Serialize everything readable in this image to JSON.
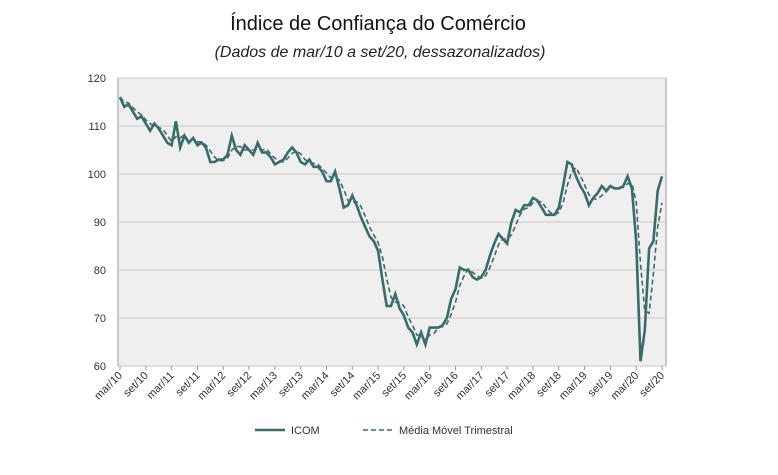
{
  "chart_data": {
    "type": "line",
    "title": "Índice de Confiança do Comércio",
    "subtitle": "(Dados de mar/10 a set/20, dessazonalizados)",
    "categories": [
      "mar/10",
      null,
      null,
      null,
      null,
      null,
      "set/10",
      null,
      null,
      null,
      null,
      null,
      "mar/11",
      null,
      null,
      null,
      null,
      null,
      "set/11",
      null,
      null,
      null,
      null,
      null,
      "mar/12",
      null,
      null,
      null,
      null,
      null,
      "set/12",
      null,
      null,
      null,
      null,
      null,
      "mar/13",
      null,
      null,
      null,
      null,
      null,
      "set/13",
      null,
      null,
      null,
      null,
      null,
      "mar/14",
      null,
      null,
      null,
      null,
      null,
      "set/14",
      null,
      null,
      null,
      null,
      null,
      "mar/15",
      null,
      null,
      null,
      null,
      null,
      "set/15",
      null,
      null,
      null,
      null,
      null,
      "mar/16",
      null,
      null,
      null,
      null,
      null,
      "set/16",
      null,
      null,
      null,
      null,
      null,
      "mar/17",
      null,
      null,
      null,
      null,
      null,
      "set/17",
      null,
      null,
      null,
      null,
      null,
      "mar/18",
      null,
      null,
      null,
      null,
      null,
      "set/18",
      null,
      null,
      null,
      null,
      null,
      "mar/19",
      null,
      null,
      null,
      null,
      null,
      "set/19",
      null,
      null,
      null,
      null,
      null,
      "mar/20",
      null,
      null,
      null,
      null,
      null,
      "set/20"
    ],
    "series": [
      {
        "name": "ICOM",
        "color": "#3a6b68",
        "dashed": false,
        "values": [
          116,
          114,
          114.5,
          113,
          111.5,
          112,
          110.5,
          109,
          110.5,
          109.5,
          108,
          106.5,
          106,
          111,
          105.5,
          108,
          106.5,
          107.5,
          106,
          106.5,
          105.5,
          102.5,
          102.5,
          103,
          103,
          104,
          108,
          105,
          104,
          106,
          105,
          104,
          106.5,
          104.5,
          104.5,
          103.5,
          102,
          102.5,
          103,
          104.5,
          105.5,
          104.5,
          102.5,
          102,
          103,
          101.5,
          101.5,
          100.5,
          98.5,
          98.5,
          100.5,
          97,
          93,
          93.5,
          95.5,
          93.5,
          91,
          89,
          87,
          86,
          84,
          78,
          72.5,
          72.5,
          75,
          72,
          70.5,
          68,
          67,
          64.5,
          67,
          64.5,
          68,
          68,
          68,
          68.5,
          70,
          74,
          76,
          80.5,
          80,
          80,
          78.5,
          78,
          78.5,
          80,
          83,
          85.5,
          87.5,
          86.5,
          85.5,
          90,
          92.5,
          92,
          93.5,
          93.5,
          95,
          94.5,
          93,
          91.5,
          91.5,
          91.5,
          93,
          97.5,
          102.5,
          102,
          99.5,
          97.5,
          96,
          93.5,
          95,
          96,
          97.5,
          96.5,
          97.5,
          97,
          97,
          97.5,
          99.5,
          97,
          86,
          61,
          67.5,
          84.5,
          86,
          96.5,
          99.5
        ]
      },
      {
        "name": "Média Móvel Trimestral",
        "color": "#3a6b68",
        "dashed": true,
        "values": [
          116,
          115,
          114.8,
          113.8,
          113,
          112.3,
          111.3,
          110.5,
          110,
          109.7,
          109.3,
          108,
          106.8,
          107.8,
          107.5,
          108.2,
          106.7,
          107.3,
          106.7,
          106.7,
          106,
          104.8,
          103.5,
          102.7,
          102.8,
          103.3,
          105,
          105.7,
          105.7,
          105,
          105,
          105,
          105.2,
          105,
          105.2,
          104.2,
          103.3,
          102.7,
          102.5,
          103.3,
          104.3,
          104.8,
          104.2,
          103,
          102.5,
          102.2,
          102,
          101.2,
          100.2,
          99.2,
          99.2,
          98.7,
          96.8,
          94.5,
          94,
          94.2,
          93.3,
          91.2,
          89,
          87.3,
          85.7,
          82.7,
          78.2,
          74.3,
          73.3,
          73.2,
          72.5,
          70.2,
          68.5,
          66.5,
          66.2,
          65.3,
          66.5,
          66.8,
          68,
          68.2,
          68.8,
          70.8,
          73.3,
          76.8,
          78.8,
          80.2,
          79.5,
          78.8,
          78.3,
          78.8,
          80.5,
          82.8,
          85.3,
          86.5,
          86.5,
          87.3,
          89.3,
          91.5,
          92.7,
          93,
          94,
          94.3,
          94.2,
          93,
          92,
          91.5,
          92,
          94,
          97.7,
          100.5,
          101.3,
          99.7,
          97.7,
          95.7,
          94.8,
          94.8,
          95.5,
          96.3,
          97.2,
          97,
          97.2,
          97.2,
          98,
          98,
          94.2,
          81.3,
          71.5,
          71,
          79.3,
          89,
          94
        ]
      }
    ],
    "ylim": [
      60,
      120
    ],
    "yticks": [
      60,
      70,
      80,
      90,
      100,
      110,
      120
    ],
    "grid": true
  }
}
